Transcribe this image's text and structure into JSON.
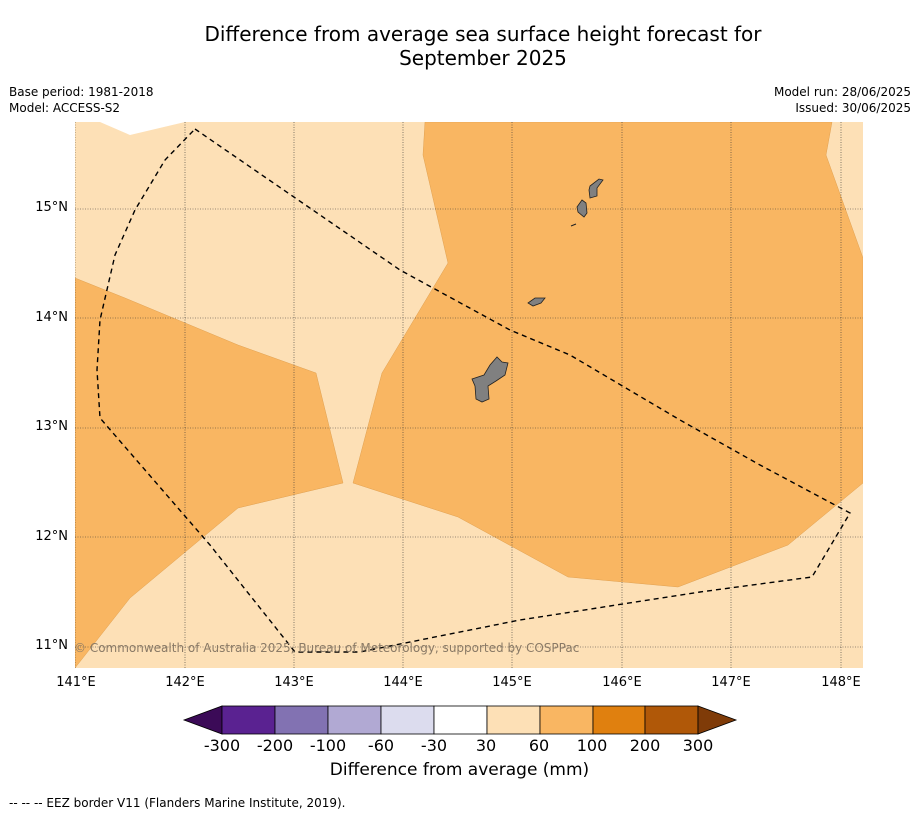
{
  "title_line1": "Difference from average sea surface height forecast for",
  "title_line2": "September 2025",
  "meta_left": {
    "base_period": "Base period: 1981-2018",
    "model": "Model: ACCESS-S2"
  },
  "meta_right": {
    "model_run": "Model run: 28/06/2025",
    "issued": "Issued: 30/06/2025"
  },
  "map": {
    "lon_labels": [
      "141°E",
      "142°E",
      "143°E",
      "144°E",
      "145°E",
      "146°E",
      "147°E",
      "148°E"
    ],
    "lat_labels": [
      "15°N",
      "14°N",
      "13°N",
      "12°N",
      "11°N"
    ],
    "copyright": "© Commonwealth of Australia 2025, Bureau of Meteorology, supported by COSPPac"
  },
  "colorbar": {
    "title": "Difference from average (mm)",
    "tick_labels": [
      "-300",
      "-200",
      "-100",
      "-60",
      "-30",
      "30",
      "60",
      "100",
      "200",
      "300"
    ],
    "colors": [
      "#3b0a57",
      "#5a2291",
      "#8272b2",
      "#b1a9d3",
      "#dcdcee",
      "#ffffff",
      "#fde0b6",
      "#f9b662",
      "#e0800f",
      "#b05808",
      "#7f3b08"
    ]
  },
  "footnote": "--  --  -- EEZ border V11 (Flanders Marine Institute, 2019)."
}
